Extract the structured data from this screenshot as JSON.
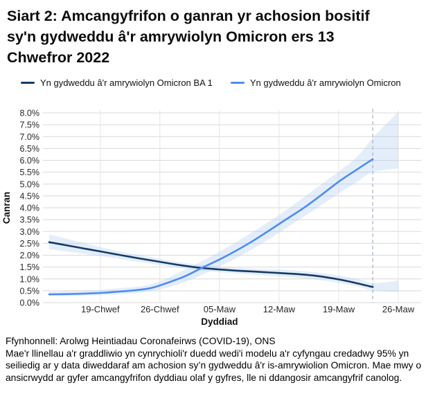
{
  "title": "Siart 2: Amcangyfrifon o ganran yr achosion bositif sy'n gydweddu â'r amrywiolyn Omicron ers 13 Chwefror 2022",
  "footer": {
    "source": "Ffynhonnell: Arolwg Heintiadau Coronafeirws (COVID-19), ONS",
    "note": "Mae'r llinellau a'r graddliwio yn cynrychioli'r duedd wedi'i modelu a'r cyfyngau credadwy 95% yn seiliedig ar y data diweddaraf am achosion sy’n gydweddu â'r is-amrywiolion Omicron. Mae mwy o ansicrwydd ar gyfer amcangyfrifon dyddiau olaf y gyfres, lle ni ddangosir amcangyfrif canolog."
  },
  "chart_data": {
    "type": "line",
    "title": "Siart 2: Amcangyfrifon o ganran yr achosion bositif sy'n gydweddu â'r amrywiolyn Omicron ers 13 Chwefror 2022",
    "xlabel": "Dyddiad",
    "ylabel": "Canran",
    "x_unit": "dyddiau ers 13 Chwefror 2022",
    "ylim": [
      0.0,
      8.0
    ],
    "grid": true,
    "legend_position": "top",
    "y_ticks": [
      {
        "label": "8.0%",
        "value": 8.0
      },
      {
        "label": "7.5%",
        "value": 7.5
      },
      {
        "label": "7.0%",
        "value": 7.0
      },
      {
        "label": "6.5%",
        "value": 6.5
      },
      {
        "label": "6.0%",
        "value": 6.0
      },
      {
        "label": "5.5%",
        "value": 5.5
      },
      {
        "label": "5.0%",
        "value": 5.0
      },
      {
        "label": "4.5%",
        "value": 4.5
      },
      {
        "label": "4.0%",
        "value": 4.0
      },
      {
        "label": "3.5%",
        "value": 3.5
      },
      {
        "label": "3.0%",
        "value": 3.0
      },
      {
        "label": "2.5%",
        "value": 2.5
      },
      {
        "label": "2.0%",
        "value": 2.0
      },
      {
        "label": "1.5%",
        "value": 1.5
      },
      {
        "label": "1.0%",
        "value": 1.0
      },
      {
        "label": "0.5%",
        "value": 0.5
      },
      {
        "label": "0.0%",
        "value": 0.0
      }
    ],
    "x_ticks": [
      {
        "label": "19-Chwef",
        "day": 6
      },
      {
        "label": "26-Chwef",
        "day": 13
      },
      {
        "label": "05-Maw",
        "day": 20
      },
      {
        "label": "12-Maw",
        "day": 27
      },
      {
        "label": "19-Maw",
        "day": 34
      },
      {
        "label": "26-Maw",
        "day": 41
      }
    ],
    "cutoff_day": 38,
    "cutoff_color": "#aab6c6",
    "grid_color": "#d8d8d8",
    "vgrid_color": "#e4e4e4",
    "band_color": "rgba(174,203,242,0.33)",
    "series": [
      {
        "name": "Yn gydweddu â'r amrywiolyn Omicron BA 1",
        "color": "#133a64",
        "points": [
          [
            0,
            2.55
          ],
          [
            2,
            2.42
          ],
          [
            4,
            2.29
          ],
          [
            6,
            2.16
          ],
          [
            8,
            2.03
          ],
          [
            10,
            1.9
          ],
          [
            12,
            1.78
          ],
          [
            14,
            1.66
          ],
          [
            16,
            1.55
          ],
          [
            18,
            1.46
          ],
          [
            20,
            1.4
          ],
          [
            22,
            1.35
          ],
          [
            24,
            1.31
          ],
          [
            26,
            1.27
          ],
          [
            28,
            1.23
          ],
          [
            30,
            1.18
          ],
          [
            32,
            1.1
          ],
          [
            34,
            0.98
          ],
          [
            36,
            0.83
          ],
          [
            38,
            0.66
          ]
        ],
        "band_upper": [
          [
            0,
            2.88
          ],
          [
            4,
            2.52
          ],
          [
            8,
            2.18
          ],
          [
            12,
            1.92
          ],
          [
            16,
            1.67
          ],
          [
            20,
            1.52
          ],
          [
            24,
            1.43
          ],
          [
            28,
            1.38
          ],
          [
            32,
            1.25
          ],
          [
            36,
            1.02
          ],
          [
            38,
            0.83
          ],
          [
            41,
            0.93
          ]
        ],
        "band_lower": [
          [
            0,
            2.25
          ],
          [
            4,
            2.06
          ],
          [
            8,
            1.86
          ],
          [
            12,
            1.64
          ],
          [
            16,
            1.43
          ],
          [
            20,
            1.28
          ],
          [
            24,
            1.18
          ],
          [
            28,
            1.08
          ],
          [
            32,
            0.94
          ],
          [
            36,
            0.7
          ],
          [
            38,
            0.52
          ],
          [
            41,
            0.44
          ]
        ]
      },
      {
        "name": "Yn gydweddu â'r amrywiolyn Omicron",
        "color": "#4d8cf1",
        "points": [
          [
            0,
            0.35
          ],
          [
            2,
            0.36
          ],
          [
            4,
            0.38
          ],
          [
            6,
            0.41
          ],
          [
            8,
            0.46
          ],
          [
            10,
            0.52
          ],
          [
            12,
            0.62
          ],
          [
            14,
            0.85
          ],
          [
            16,
            1.12
          ],
          [
            18,
            1.48
          ],
          [
            20,
            1.82
          ],
          [
            22,
            2.2
          ],
          [
            24,
            2.62
          ],
          [
            26,
            3.08
          ],
          [
            28,
            3.55
          ],
          [
            30,
            4.02
          ],
          [
            32,
            4.55
          ],
          [
            34,
            5.1
          ],
          [
            36,
            5.58
          ],
          [
            38,
            6.05
          ]
        ],
        "band_upper": [
          [
            0,
            0.45
          ],
          [
            4,
            0.5
          ],
          [
            8,
            0.6
          ],
          [
            12,
            0.78
          ],
          [
            16,
            1.4
          ],
          [
            20,
            2.15
          ],
          [
            24,
            3.0
          ],
          [
            28,
            3.95
          ],
          [
            32,
            5.0
          ],
          [
            36,
            6.1
          ],
          [
            38,
            6.95
          ],
          [
            41,
            8.05
          ]
        ],
        "band_lower": [
          [
            0,
            0.27
          ],
          [
            4,
            0.29
          ],
          [
            8,
            0.35
          ],
          [
            12,
            0.48
          ],
          [
            16,
            0.88
          ],
          [
            20,
            1.52
          ],
          [
            24,
            2.28
          ],
          [
            28,
            3.18
          ],
          [
            32,
            4.12
          ],
          [
            34,
            4.6
          ],
          [
            36,
            5.05
          ],
          [
            38,
            5.5
          ],
          [
            41,
            5.65
          ]
        ]
      }
    ]
  }
}
